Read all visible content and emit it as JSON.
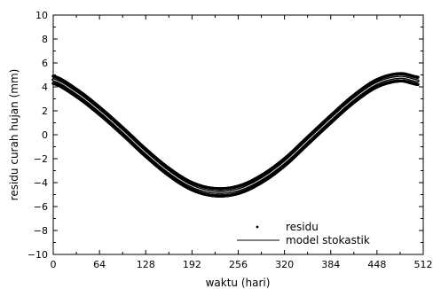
{
  "chart_data": {
    "type": "scatter",
    "title": "",
    "xlabel": "waktu (hari)",
    "ylabel": "residu curah hujan (mm)",
    "xlim": [
      0,
      512
    ],
    "ylim": [
      -10,
      10
    ],
    "xticks": [
      0,
      64,
      128,
      192,
      256,
      320,
      384,
      448,
      512
    ],
    "yticks": [
      -10,
      -8,
      -6,
      -4,
      -2,
      0,
      2,
      4,
      6,
      8,
      10
    ],
    "grid": false,
    "legend": "bottom-right",
    "series": [
      {
        "name": "residu",
        "kind": "points",
        "color": "#000000",
        "x": [
          0,
          32,
          64,
          96,
          128,
          160,
          192,
          224,
          256,
          288,
          320,
          352,
          384,
          416,
          448,
          480,
          505
        ],
        "y": [
          4.6,
          3.5,
          2.0,
          0.3,
          -1.5,
          -3.1,
          -4.3,
          -4.8,
          -4.6,
          -3.7,
          -2.3,
          -0.5,
          1.3,
          3.0,
          4.3,
          4.8,
          4.5
        ],
        "band": 0.3
      },
      {
        "name": "model stokastik",
        "kind": "line",
        "color": "#000000",
        "x": [
          0,
          32,
          64,
          96,
          128,
          160,
          192,
          224,
          256,
          288,
          320,
          352,
          384,
          416,
          448,
          480,
          505
        ],
        "y": [
          4.6,
          3.5,
          2.0,
          0.3,
          -1.5,
          -3.1,
          -4.3,
          -4.8,
          -4.6,
          -3.7,
          -2.3,
          -0.5,
          1.3,
          3.0,
          4.3,
          4.8,
          4.5
        ]
      }
    ]
  }
}
